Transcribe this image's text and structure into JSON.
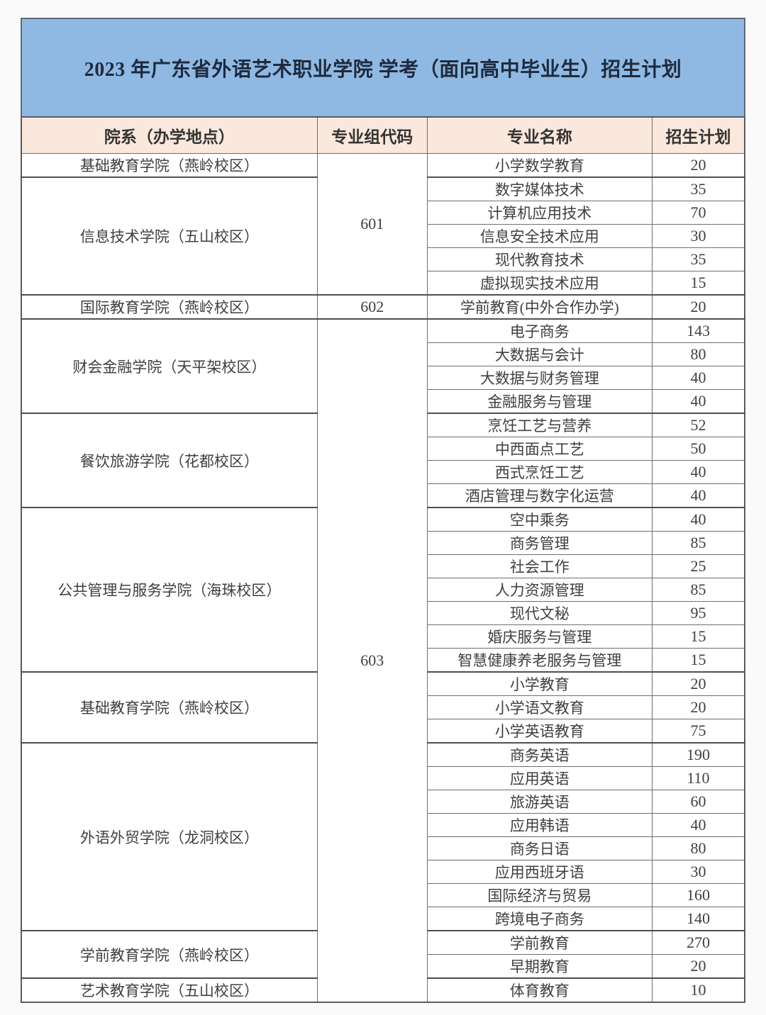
{
  "banner": {
    "title": "2023 年广东省外语艺术职业学院 学考（面向高中毕业生）招生计划",
    "bg_color": "#8fb9e2",
    "text_color": "#1e2a3e"
  },
  "table": {
    "header": {
      "bg_color": "#fbe8dc",
      "columns": [
        "院系（办学地点）",
        "专业组代码",
        "专业名称",
        "招生计划"
      ]
    },
    "code_groups": [
      {
        "code": "601",
        "rows": 6
      },
      {
        "code": "602",
        "rows": 1
      },
      {
        "code": "603",
        "rows": 29
      }
    ],
    "sections": [
      {
        "college": "基础教育学院（燕岭校区）",
        "majors": [
          {
            "major": "小学数学教育",
            "plan": "20"
          }
        ]
      },
      {
        "college": "信息技术学院（五山校区）",
        "majors": [
          {
            "major": "数字媒体技术",
            "plan": "35"
          },
          {
            "major": "计算机应用技术",
            "plan": "70"
          },
          {
            "major": "信息安全技术应用",
            "plan": "30"
          },
          {
            "major": "现代教育技术",
            "plan": "35"
          },
          {
            "major": "虚拟现实技术应用",
            "plan": "15"
          }
        ]
      },
      {
        "college": "国际教育学院（燕岭校区）",
        "majors": [
          {
            "major": "学前教育(中外合作办学)",
            "plan": "20"
          }
        ]
      },
      {
        "college": "财会金融学院（天平架校区）",
        "majors": [
          {
            "major": "电子商务",
            "plan": "143"
          },
          {
            "major": "大数据与会计",
            "plan": "80"
          },
          {
            "major": "大数据与财务管理",
            "plan": "40"
          },
          {
            "major": "金融服务与管理",
            "plan": "40"
          }
        ]
      },
      {
        "college": "餐饮旅游学院（花都校区）",
        "majors": [
          {
            "major": "烹饪工艺与营养",
            "plan": "52"
          },
          {
            "major": "中西面点工艺",
            "plan": "50"
          },
          {
            "major": "西式烹饪工艺",
            "plan": "40"
          },
          {
            "major": "酒店管理与数字化运营",
            "plan": "40"
          }
        ]
      },
      {
        "college": "公共管理与服务学院（海珠校区）",
        "majors": [
          {
            "major": "空中乘务",
            "plan": "40"
          },
          {
            "major": "商务管理",
            "plan": "85"
          },
          {
            "major": "社会工作",
            "plan": "25"
          },
          {
            "major": "人力资源管理",
            "plan": "85"
          },
          {
            "major": "现代文秘",
            "plan": "95"
          },
          {
            "major": "婚庆服务与管理",
            "plan": "15"
          },
          {
            "major": "智慧健康养老服务与管理",
            "plan": "15"
          }
        ]
      },
      {
        "college": "基础教育学院（燕岭校区）",
        "majors": [
          {
            "major": "小学教育",
            "plan": "20"
          },
          {
            "major": "小学语文教育",
            "plan": "20"
          },
          {
            "major": "小学英语教育",
            "plan": "75"
          }
        ]
      },
      {
        "college": "外语外贸学院（龙洞校区）",
        "majors": [
          {
            "major": "商务英语",
            "plan": "190"
          },
          {
            "major": "应用英语",
            "plan": "110"
          },
          {
            "major": "旅游英语",
            "plan": "60"
          },
          {
            "major": "应用韩语",
            "plan": "40"
          },
          {
            "major": "商务日语",
            "plan": "80"
          },
          {
            "major": "应用西班牙语",
            "plan": "30"
          },
          {
            "major": "国际经济与贸易",
            "plan": "160"
          },
          {
            "major": "跨境电子商务",
            "plan": "140"
          }
        ]
      },
      {
        "college": "学前教育学院（燕岭校区）",
        "majors": [
          {
            "major": "学前教育",
            "plan": "270"
          },
          {
            "major": "早期教育",
            "plan": "20"
          }
        ]
      },
      {
        "college": "艺术教育学院（五山校区）",
        "majors": [
          {
            "major": "体育教育",
            "plan": "10"
          }
        ]
      }
    ]
  }
}
